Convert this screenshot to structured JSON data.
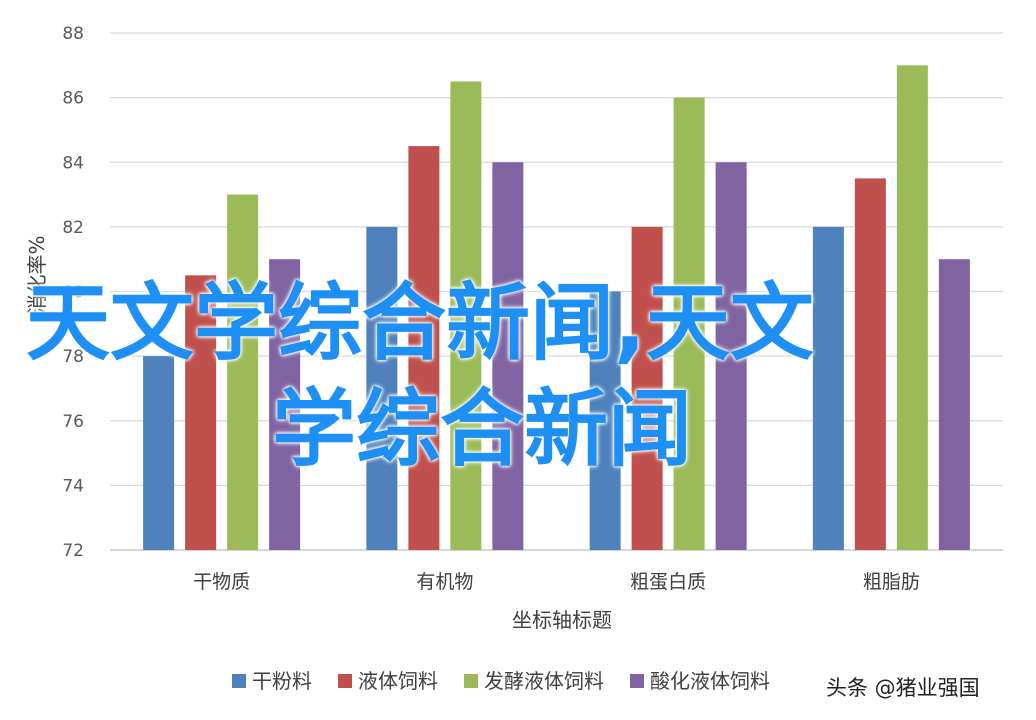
{
  "chart_data": {
    "type": "bar",
    "categories": [
      "干物质",
      "有机物",
      "粗蛋白质",
      "粗脂肪"
    ],
    "series": [
      {
        "name": "干粉料",
        "color": "#4f81bd",
        "values": [
          78,
          82,
          80,
          82
        ]
      },
      {
        "name": "液体饲料",
        "color": "#c0504d",
        "values": [
          80.5,
          84.5,
          82,
          83.5
        ]
      },
      {
        "name": "发酵液体饲料",
        "color": "#9bbb59",
        "values": [
          83,
          86.5,
          86,
          87
        ]
      },
      {
        "name": "酸化液体饲料",
        "color": "#8064a2",
        "values": [
          81,
          84,
          84,
          81
        ]
      }
    ],
    "xlabel": "坐标轴标题",
    "ylabel": "消化率%",
    "ylim": [
      72,
      88
    ],
    "yticks": [
      "72",
      "74",
      "76",
      "78",
      "80",
      "82",
      "84",
      "86",
      "88"
    ],
    "grid": true,
    "legend_position": "bottom"
  },
  "overlay": {
    "line1": "天文学综合新闻,天文",
    "line2": "学综合新闻"
  },
  "watermark": "头条 @猪业强国"
}
